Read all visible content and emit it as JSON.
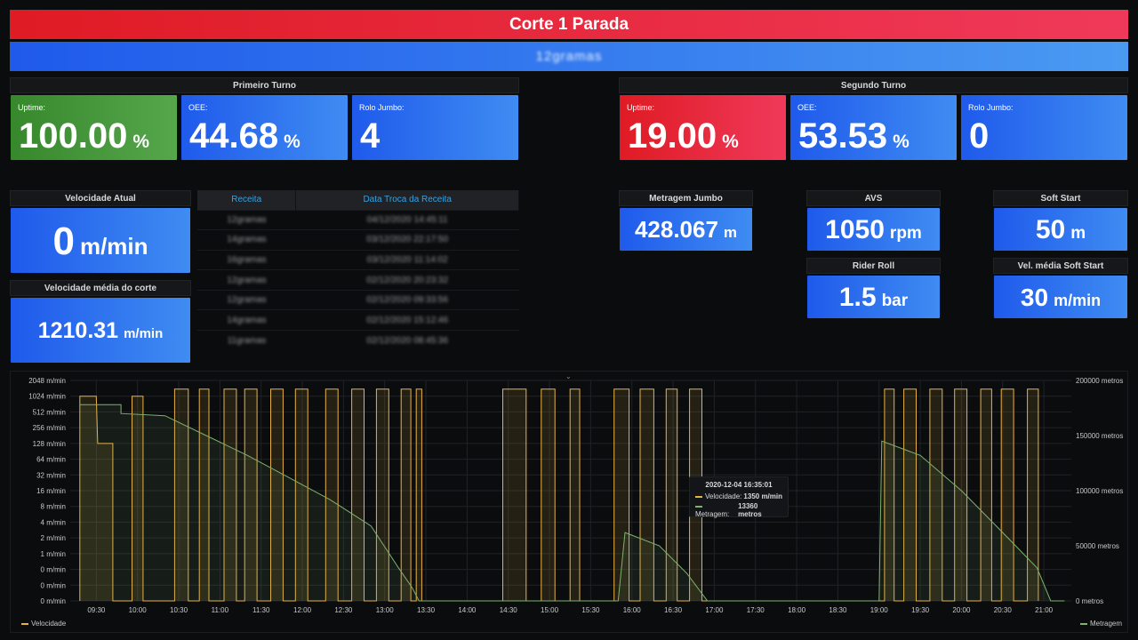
{
  "banner": {
    "title": "Corte 1  Parada",
    "subtitle": "12gramas"
  },
  "primeiro_turno": {
    "title": "Primeiro Turno",
    "uptime": {
      "label": "Uptime:",
      "value": "100.00",
      "unit": "%"
    },
    "oee": {
      "label": "OEE:",
      "value": "44.68",
      "unit": "%"
    },
    "rolo": {
      "label": "Rolo Jumbo:",
      "value": "4"
    }
  },
  "segundo_turno": {
    "title": "Segundo Turno",
    "uptime": {
      "label": "Uptime:",
      "value": "19.00",
      "unit": "%"
    },
    "oee": {
      "label": "OEE:",
      "value": "53.53",
      "unit": "%"
    },
    "rolo": {
      "label": "Rolo Jumbo:",
      "value": "0"
    }
  },
  "velocidade_atual": {
    "title": "Velocidade Atual",
    "value": "0",
    "unit": "m/min"
  },
  "velocidade_media": {
    "title": "Velocidade média do corte",
    "value": "1210.31",
    "unit": "m/min"
  },
  "receitas": {
    "headers": [
      "Receita",
      "Data Troca da Receita"
    ],
    "rows": [
      [
        "12gramas",
        "04/12/2020 14:45:11"
      ],
      [
        "14gramas",
        "03/12/2020 22:17:50"
      ],
      [
        "16gramas",
        "03/12/2020 11:14:02"
      ],
      [
        "12gramas",
        "02/12/2020 20:23:32"
      ],
      [
        "12gramas",
        "02/12/2020 09:33:56"
      ],
      [
        "14gramas",
        "02/12/2020 15:12:46"
      ],
      [
        "11gramas",
        "02/12/2020 08:45:36"
      ]
    ]
  },
  "metragem_jumbo": {
    "title": "Metragem Jumbo",
    "value": "428.067",
    "unit": "m"
  },
  "avs": {
    "title": "AVS",
    "value": "1050",
    "unit": "rpm"
  },
  "rider_roll": {
    "title": "Rider Roll",
    "value": "1.5",
    "unit": "bar"
  },
  "soft_start": {
    "title": "Soft Start",
    "value": "50",
    "unit": "m"
  },
  "vel_media_soft": {
    "title": "Vel. média Soft Start",
    "value": "30",
    "unit": "m/min"
  },
  "colors": {
    "velocidade": "#e8b243",
    "metragem": "#7eb26d",
    "blue": "#1f5aeb",
    "red": "#df1b24",
    "green": "#37872d"
  },
  "tooltip": {
    "title": "2020-12-04 16:35:01",
    "rows": [
      {
        "label": "Velocidade:",
        "value": "1350 m/min"
      },
      {
        "label": "Metragem:",
        "value": "13360 metros"
      }
    ]
  },
  "chart_data": {
    "type": "line",
    "x_ticks": [
      "09:30",
      "10:00",
      "10:30",
      "11:00",
      "11:30",
      "12:00",
      "12:30",
      "13:00",
      "13:30",
      "14:00",
      "14:30",
      "15:00",
      "15:30",
      "16:00",
      "16:30",
      "17:00",
      "17:30",
      "18:00",
      "18:30",
      "19:00",
      "19:30",
      "20:00",
      "20:30",
      "21:00"
    ],
    "y_left_ticks": [
      "2048 m/min",
      "1024 m/min",
      "512 m/min",
      "256 m/min",
      "128 m/min",
      "64 m/min",
      "32 m/min",
      "16 m/min",
      "8 m/min",
      "4 m/min",
      "2 m/min",
      "1 m/min",
      "0 m/min",
      "0 m/min",
      "0 m/min"
    ],
    "y_right_ticks": [
      "200000 metros",
      "150000 metros",
      "100000 metros",
      "50000 metros",
      "0 metros"
    ],
    "y_left_scale": "log2",
    "y_right_range": [
      0,
      200000
    ],
    "grid": true,
    "series": [
      {
        "name": "Velocidade",
        "axis": "left",
        "points": [
          [
            "09:18",
            0
          ],
          [
            "09:18",
            1024
          ],
          [
            "09:30",
            1024
          ],
          [
            "09:31",
            128
          ],
          [
            "09:42",
            128
          ],
          [
            "09:42",
            0
          ],
          [
            "09:56",
            0
          ],
          [
            "09:56",
            1024
          ],
          [
            "10:04",
            1024
          ],
          [
            "10:04",
            0
          ],
          [
            "10:27",
            0
          ],
          [
            "10:27",
            1400
          ],
          [
            "10:37",
            1400
          ],
          [
            "10:37",
            0
          ],
          [
            "10:45",
            0
          ],
          [
            "10:45",
            1400
          ],
          [
            "10:52",
            1400
          ],
          [
            "10:52",
            0
          ],
          [
            "11:03",
            0
          ],
          [
            "11:03",
            1400
          ],
          [
            "11:12",
            1400
          ],
          [
            "11:12",
            0
          ],
          [
            "11:18",
            0
          ],
          [
            "11:18",
            1400
          ],
          [
            "11:27",
            1400
          ],
          [
            "11:27",
            0
          ],
          [
            "11:37",
            0
          ],
          [
            "11:37",
            1400
          ],
          [
            "11:46",
            1400
          ],
          [
            "11:46",
            0
          ],
          [
            "11:55",
            0
          ],
          [
            "11:55",
            1400
          ],
          [
            "12:04",
            1400
          ],
          [
            "12:04",
            0
          ],
          [
            "12:17",
            0
          ],
          [
            "12:17",
            1400
          ],
          [
            "12:26",
            1400
          ],
          [
            "12:26",
            0
          ],
          [
            "12:36",
            0
          ],
          [
            "12:36",
            1400
          ],
          [
            "12:45",
            1400
          ],
          [
            "12:45",
            0
          ],
          [
            "12:54",
            0
          ],
          [
            "12:54",
            1400
          ],
          [
            "13:03",
            1400
          ],
          [
            "13:03",
            0
          ],
          [
            "13:12",
            0
          ],
          [
            "13:12",
            1400
          ],
          [
            "13:19",
            1400
          ],
          [
            "13:19",
            0
          ],
          [
            "13:23",
            0
          ],
          [
            "13:23",
            1400
          ],
          [
            "13:27",
            1400
          ],
          [
            "13:27",
            0
          ],
          [
            "14:26",
            0
          ],
          [
            "14:26",
            1400
          ],
          [
            "14:43",
            1400
          ],
          [
            "14:43",
            0
          ],
          [
            "14:54",
            0
          ],
          [
            "14:54",
            1400
          ],
          [
            "15:04",
            1400
          ],
          [
            "15:04",
            0
          ],
          [
            "15:15",
            0
          ],
          [
            "15:15",
            1400
          ],
          [
            "15:22",
            1400
          ],
          [
            "15:22",
            0
          ],
          [
            "15:47",
            0
          ],
          [
            "15:47",
            1400
          ],
          [
            "15:58",
            1400
          ],
          [
            "15:58",
            0
          ],
          [
            "16:06",
            0
          ],
          [
            "16:06",
            1400
          ],
          [
            "16:16",
            1400
          ],
          [
            "16:16",
            0
          ],
          [
            "16:25",
            0
          ],
          [
            "16:25",
            1400
          ],
          [
            "16:33",
            1400
          ],
          [
            "16:33",
            0
          ],
          [
            "16:42",
            0
          ],
          [
            "16:42",
            1400
          ],
          [
            "16:51",
            1400
          ],
          [
            "16:51",
            0
          ],
          [
            "19:04",
            0
          ],
          [
            "19:04",
            1400
          ],
          [
            "19:11",
            1400
          ],
          [
            "19:11",
            0
          ],
          [
            "19:18",
            0
          ],
          [
            "19:18",
            1400
          ],
          [
            "19:27",
            1400
          ],
          [
            "19:27",
            0
          ],
          [
            "19:37",
            0
          ],
          [
            "19:37",
            1400
          ],
          [
            "19:46",
            1400
          ],
          [
            "19:46",
            0
          ],
          [
            "19:55",
            0
          ],
          [
            "19:55",
            1400
          ],
          [
            "20:04",
            1400
          ],
          [
            "20:04",
            0
          ],
          [
            "20:14",
            0
          ],
          [
            "20:14",
            1400
          ],
          [
            "20:22",
            1400
          ],
          [
            "20:22",
            0
          ],
          [
            "20:29",
            0
          ],
          [
            "20:29",
            1400
          ],
          [
            "20:38",
            1400
          ],
          [
            "20:38",
            0
          ],
          [
            "20:48",
            0
          ],
          [
            "20:48",
            1400
          ],
          [
            "20:56",
            1400
          ],
          [
            "20:56",
            0
          ]
        ]
      },
      {
        "name": "Metragem",
        "axis": "right",
        "points": [
          [
            "09:18",
            178000
          ],
          [
            "09:48",
            178000
          ],
          [
            "09:48",
            170000
          ],
          [
            "10:20",
            168000
          ],
          [
            "10:50",
            150000
          ],
          [
            "11:20",
            132000
          ],
          [
            "11:50",
            112000
          ],
          [
            "12:20",
            92000
          ],
          [
            "12:50",
            68000
          ],
          [
            "13:10",
            30000
          ],
          [
            "13:20",
            12000
          ],
          [
            "13:25",
            0
          ],
          [
            "15:50",
            0
          ],
          [
            "15:55",
            62000
          ],
          [
            "16:20",
            50000
          ],
          [
            "16:40",
            25000
          ],
          [
            "16:55",
            0
          ],
          [
            "19:00",
            0
          ],
          [
            "19:02",
            145000
          ],
          [
            "19:30",
            132000
          ],
          [
            "20:00",
            100000
          ],
          [
            "20:30",
            62000
          ],
          [
            "20:55",
            30000
          ],
          [
            "21:05",
            0
          ],
          [
            "21:15",
            0
          ]
        ]
      }
    ]
  },
  "legend": {
    "velocidade": "Velocidade",
    "metragem": "Metragem"
  }
}
